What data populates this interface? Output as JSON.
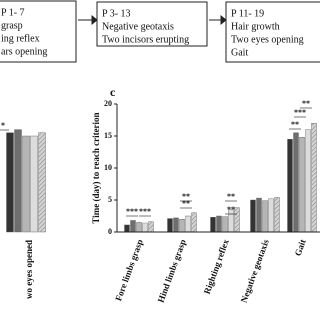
{
  "flow": {
    "boxes": [
      {
        "lines": [
          "P 1- 7",
          "grasp",
          "ing reflex",
          "ars opening"
        ]
      },
      {
        "lines": [
          "P 3- 13",
          "Negative geotaxis",
          "Two incisors erupting"
        ]
      },
      {
        "lines": [
          "P 11- 19",
          "Hair growth",
          "Two eyes opening",
          "Gait"
        ]
      }
    ]
  },
  "chart_data": [
    {
      "type": "bar",
      "categories": [
        "wo eyes opened"
      ],
      "ylim": [
        0,
        20
      ],
      "series": [
        {
          "color": "#333333",
          "values": [
            15.5
          ]
        },
        {
          "color": "#6e6e6e",
          "values": [
            16
          ]
        },
        {
          "color": "#b5b5b5",
          "values": [
            15
          ]
        },
        {
          "color": "#ececec",
          "values": [
            15
          ]
        },
        {
          "color": "#d4d4d4",
          "values": [
            15.5
          ]
        }
      ],
      "annotations": [
        "*"
      ]
    },
    {
      "type": "bar",
      "panel": "c",
      "y_label": "Time (day) to reach criterion",
      "categories": [
        "Fore limbs grasp",
        "Hind limbs grasp",
        "Righting reflex",
        "Negative geotaxis",
        "Gait"
      ],
      "ylim": [
        0,
        20
      ],
      "yticks": [
        0,
        5,
        10,
        15,
        20
      ],
      "series": [
        {
          "color": "#333333",
          "values": [
            1.1,
            2.1,
            2.3,
            5.0,
            14.5
          ]
        },
        {
          "color": "#6e6e6e",
          "values": [
            1.8,
            2.2,
            2.5,
            5.3,
            15.5
          ]
        },
        {
          "color": "#b5b5b5",
          "values": [
            1.5,
            2.0,
            2.4,
            4.9,
            14.8
          ]
        },
        {
          "color": "#ececec",
          "values": [
            1.4,
            2.5,
            3.5,
            5.2,
            16.0
          ]
        },
        {
          "color": "#d4d4d4",
          "values": [
            1.6,
            3.0,
            3.8,
            5.4,
            17.0
          ]
        }
      ],
      "annotations": [
        "***",
        "***",
        "**",
        "**",
        "**",
        "**",
        "**",
        "***",
        "**"
      ]
    }
  ]
}
